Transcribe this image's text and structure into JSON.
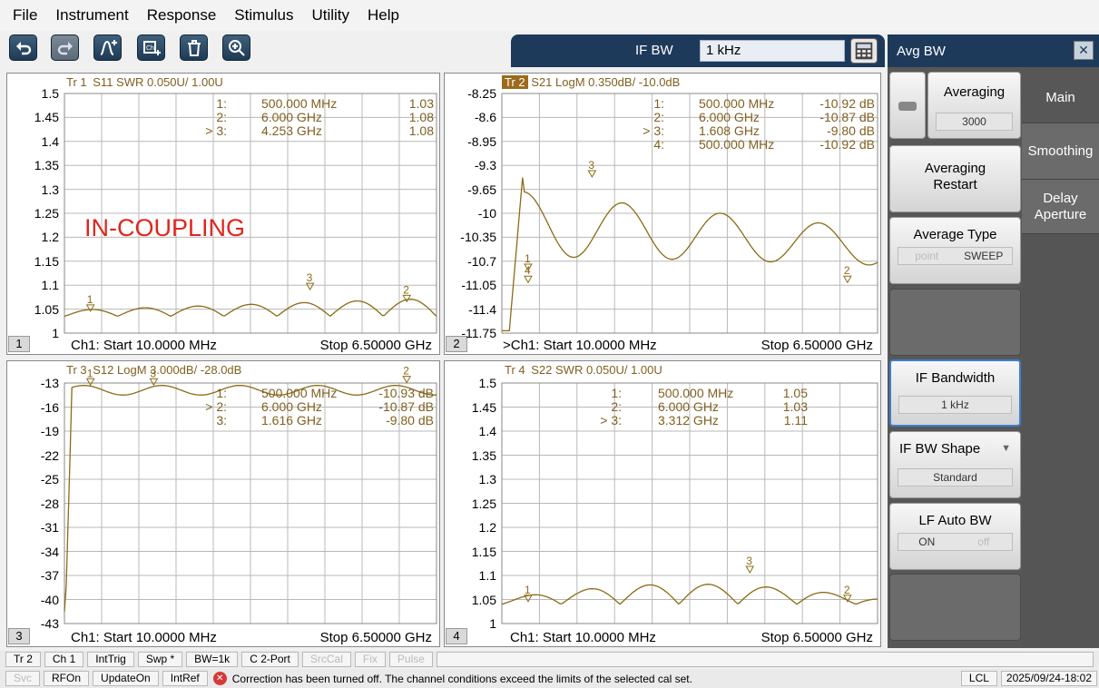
{
  "menubar": {
    "items": [
      "File",
      "Instrument",
      "Response",
      "Stimulus",
      "Utility",
      "Help"
    ]
  },
  "toolbar": {
    "icons": [
      "undo-icon",
      "redo-icon",
      "add-trace-icon",
      "add-channel-icon",
      "delete-icon",
      "zoom-icon"
    ],
    "ifbw_label": "IF BW",
    "ifbw_value": "1 kHz"
  },
  "panels": [
    {
      "header_trace": "Tr 1",
      "header_rest": "S11 SWR 0.050U/  1.00U",
      "active": false,
      "number": "1",
      "start": "Ch1:  Start  10.0000 MHz",
      "stop": "Stop  6.50000 GHz",
      "yticks": [
        "1.5",
        "1.45",
        "1.4",
        "1.35",
        "1.3",
        "1.25",
        "1.2",
        "1.15",
        "1.1",
        "1.05",
        "1"
      ],
      "markers": [
        {
          "idx": "1:",
          "freq": "500.000  MHz",
          "val": "1.03"
        },
        {
          "idx": "2:",
          "freq": "6.000  GHz",
          "val": "1.08"
        },
        {
          "idx": "> 3:",
          "freq": "4.253  GHz",
          "val": "1.08"
        }
      ],
      "annotation": "IN-COUPLING"
    },
    {
      "header_trace": "Tr 2",
      "header_rest": "S21 LogM 0.350dB/  -10.0dB",
      "active": true,
      "number": "2",
      "start": ">Ch1:  Start  10.0000 MHz",
      "stop": "Stop  6.50000 GHz",
      "yticks": [
        "-8.25",
        "-8.6",
        "-8.95",
        "-9.3",
        "-9.65",
        "-10",
        "-10.35",
        "-10.7",
        "-11.05",
        "-11.4",
        "-11.75"
      ],
      "markers": [
        {
          "idx": "1:",
          "freq": "500.000  MHz",
          "val": "-10.92 dB"
        },
        {
          "idx": "2:",
          "freq": "6.000  GHz",
          "val": "-10.87 dB"
        },
        {
          "idx": "> 3:",
          "freq": "1.608  GHz",
          "val": "-9.80 dB"
        },
        {
          "idx": "4:",
          "freq": "500.000  MHz",
          "val": "-10.92 dB"
        }
      ]
    },
    {
      "header_trace": "Tr 3",
      "header_rest": "S12 LogM 3.000dB/  -28.0dB",
      "active": false,
      "number": "3",
      "start": "Ch1:  Start  10.0000 MHz",
      "stop": "Stop  6.50000 GHz",
      "yticks": [
        "-13",
        "-16",
        "-19",
        "-22",
        "-25",
        "-28",
        "-31",
        "-34",
        "-37",
        "-40",
        "-43"
      ],
      "markers": [
        {
          "idx": "1:",
          "freq": "500.000  MHz",
          "val": "-10.93 dB"
        },
        {
          "idx": "> 2:",
          "freq": "6.000  GHz",
          "val": "-10.87 dB"
        },
        {
          "idx": "3:",
          "freq": "1.616  GHz",
          "val": "-9.80 dB"
        }
      ]
    },
    {
      "header_trace": "Tr 4",
      "header_rest": "S22 SWR 0.050U/  1.00U",
      "active": false,
      "number": "4",
      "start": "Ch1:  Start  10.0000 MHz",
      "stop": "Stop  6.50000 GHz",
      "yticks": [
        "1.5",
        "1.45",
        "1.4",
        "1.35",
        "1.3",
        "1.25",
        "1.2",
        "1.15",
        "1.1",
        "1.05",
        "1"
      ],
      "markers": [
        {
          "idx": "1:",
          "freq": "500.000  MHz",
          "val": "1.05"
        },
        {
          "idx": "2:",
          "freq": "6.000  GHz",
          "val": "1.03"
        },
        {
          "idx": "> 3:",
          "freq": "3.312  GHz",
          "val": "1.11"
        }
      ]
    }
  ],
  "sidebar": {
    "title": "Avg BW",
    "averaging_label": "Averaging",
    "averaging_value": "3000",
    "restart_label": "Averaging Restart",
    "avg_type_label": "Average Type",
    "avg_type_options": [
      "point",
      "SWEEP"
    ],
    "ifbw_label": "IF Bandwidth",
    "ifbw_value": "1 kHz",
    "ifbw_shape_label": "IF BW Shape",
    "ifbw_shape_value": "Standard",
    "lf_auto_label": "LF Auto BW",
    "lf_auto_options": [
      "ON",
      "off"
    ],
    "tabs": [
      "Main",
      "Smoothing",
      "Delay Aperture"
    ]
  },
  "statusbar": {
    "row1": [
      "Tr 2",
      "Ch 1",
      "IntTrig",
      "Swp *",
      "BW=1k",
      "C  2-Port",
      "SrcCal",
      "Fix",
      "Pulse"
    ],
    "row2": [
      "Svc",
      "RFOn",
      "UpdateOn",
      "IntRef"
    ],
    "message": "Correction has been turned off. The channel conditions exceed the limits of the selected cal set.",
    "lcl": "LCL",
    "timestamp": "2025/09/24-18:02"
  },
  "colors": {
    "trace": "#8b6b16",
    "accent": "#1e3a5b",
    "annotation": "#e0261d"
  }
}
